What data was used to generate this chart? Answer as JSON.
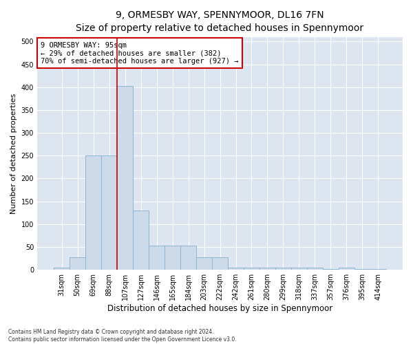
{
  "title": "9, ORMESBY WAY, SPENNYMOOR, DL16 7FN",
  "subtitle": "Size of property relative to detached houses in Spennymoor",
  "xlabel": "Distribution of detached houses by size in Spennymoor",
  "ylabel": "Number of detached properties",
  "categories": [
    "31sqm",
    "50sqm",
    "69sqm",
    "88sqm",
    "107sqm",
    "127sqm",
    "146sqm",
    "165sqm",
    "184sqm",
    "203sqm",
    "222sqm",
    "242sqm",
    "261sqm",
    "280sqm",
    "299sqm",
    "318sqm",
    "337sqm",
    "357sqm",
    "376sqm",
    "395sqm",
    "414sqm"
  ],
  "values": [
    4,
    28,
    250,
    250,
    403,
    130,
    53,
    53,
    53,
    28,
    28,
    4,
    4,
    4,
    4,
    4,
    4,
    2,
    4,
    2,
    2
  ],
  "bar_color": "#ccdaea",
  "bar_edge_color": "#8db4d4",
  "vline_x": 3.5,
  "vline_color": "#cc0000",
  "annotation_line1": "9 ORMESBY WAY: 95sqm",
  "annotation_line2": "← 29% of detached houses are smaller (382)",
  "annotation_line3": "70% of semi-detached houses are larger (927) →",
  "annotation_box_color": "#ffffff",
  "annotation_box_edge": "#cc0000",
  "ylim": [
    0,
    510
  ],
  "yticks": [
    0,
    50,
    100,
    150,
    200,
    250,
    300,
    350,
    400,
    450,
    500
  ],
  "footer": "Contains HM Land Registry data © Crown copyright and database right 2024.\nContains public sector information licensed under the Open Government Licence v3.0.",
  "title_fontsize": 10,
  "subtitle_fontsize": 9,
  "xlabel_fontsize": 8.5,
  "ylabel_fontsize": 8,
  "tick_fontsize": 7,
  "annotation_fontsize": 7.5,
  "footer_fontsize": 5.5,
  "bg_color": "#dde6f0",
  "plot_bg_color": "#dde6f0"
}
